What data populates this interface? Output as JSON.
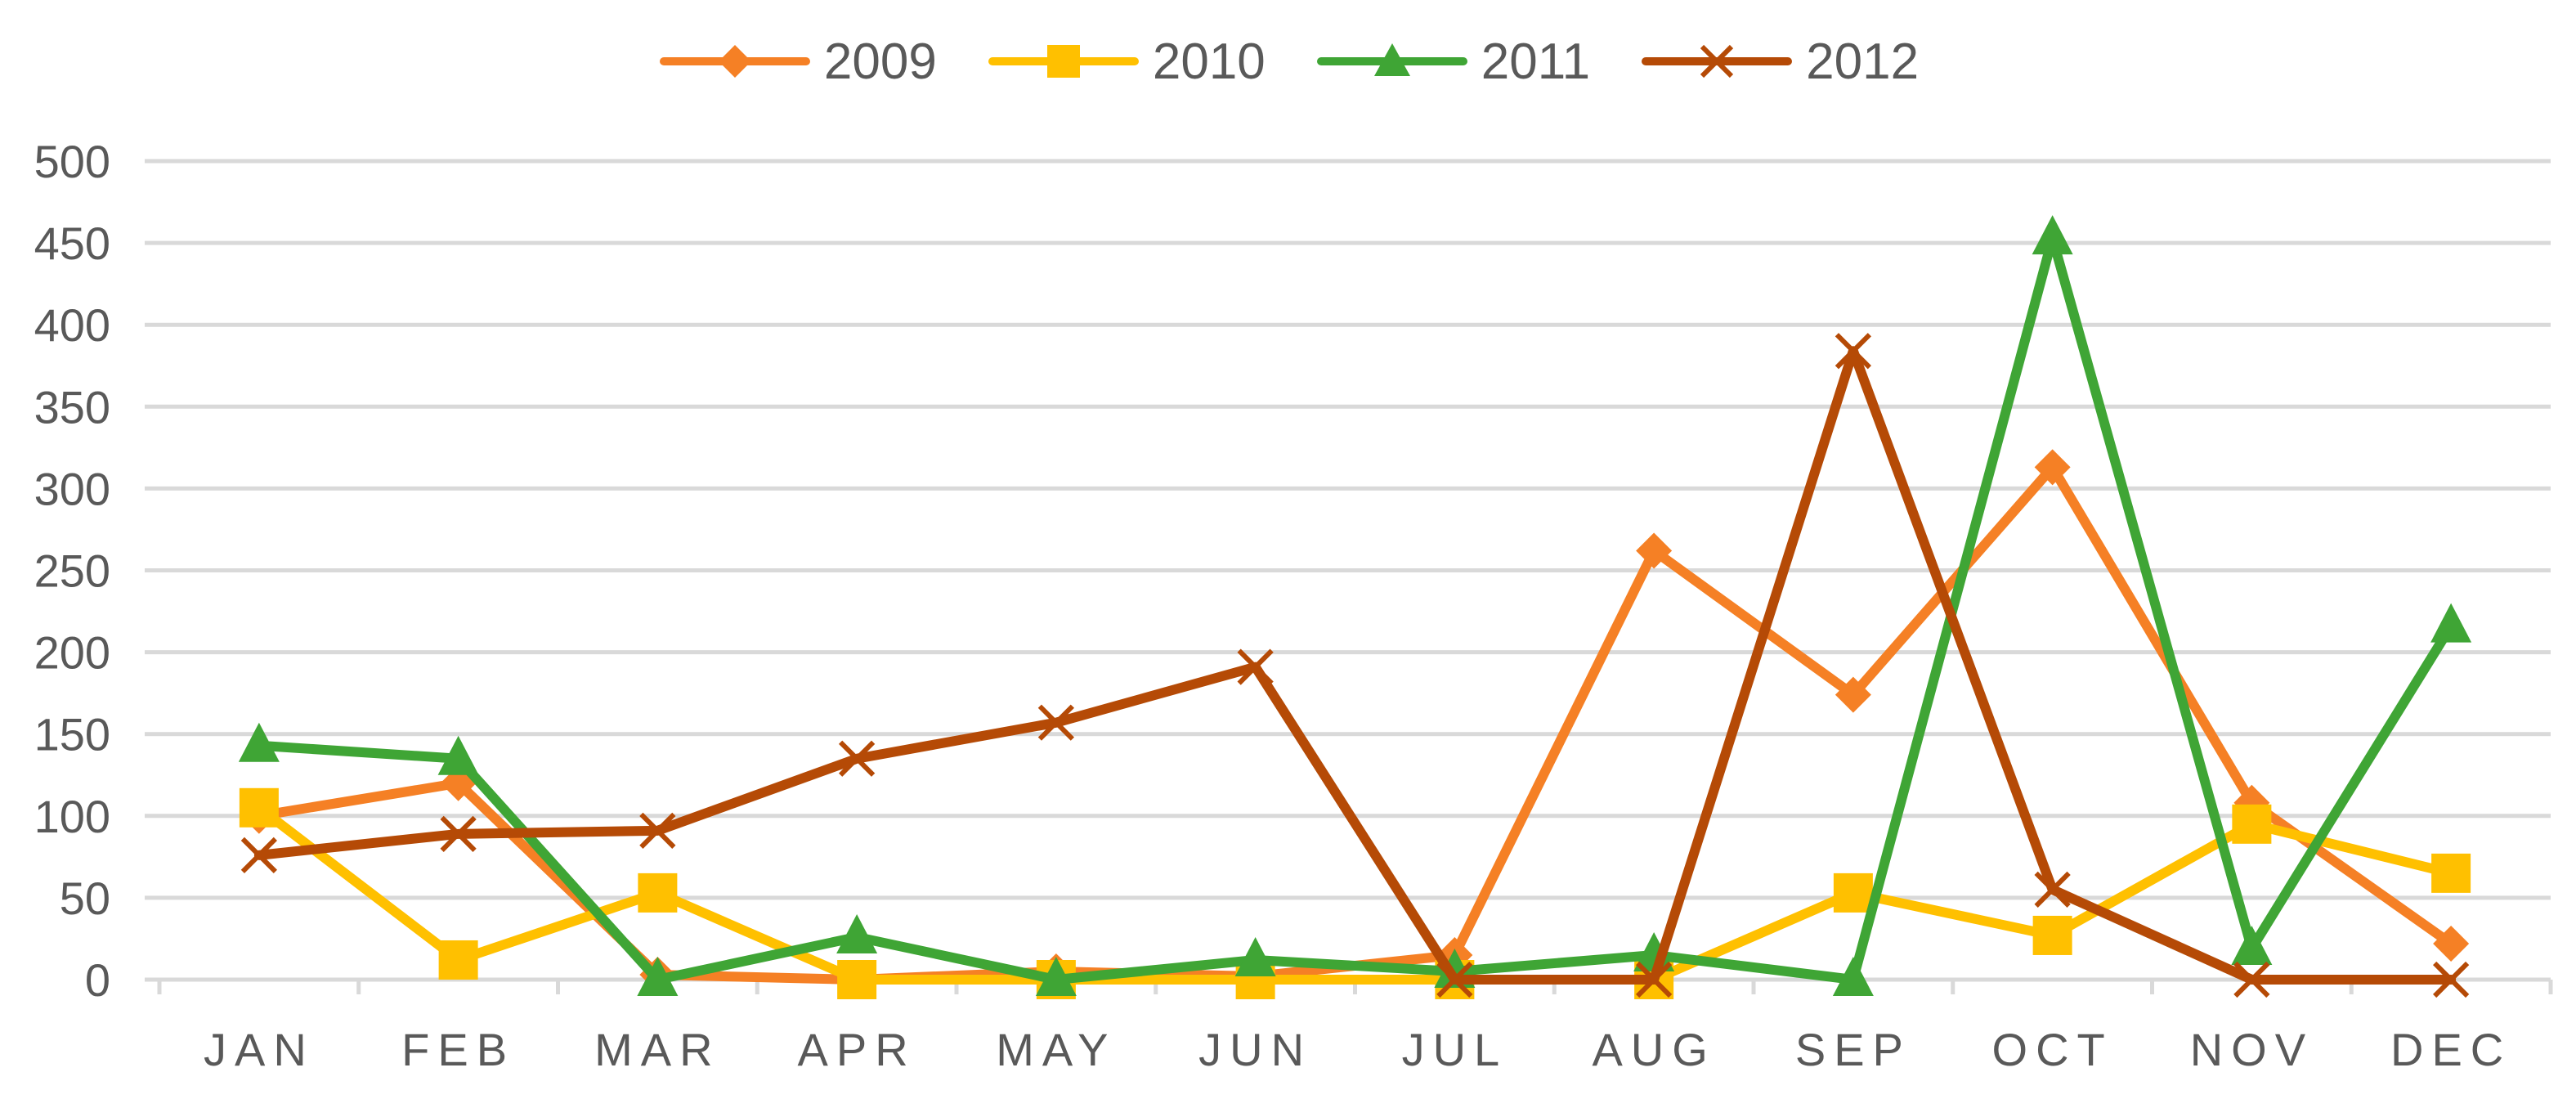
{
  "chart_data": {
    "type": "line",
    "title": "",
    "xlabel": "",
    "ylabel": "",
    "categories": [
      "JAN",
      "FEB",
      "MAR",
      "APR",
      "MAY",
      "JUN",
      "JUL",
      "AUG",
      "SEP",
      "OCT",
      "NOV",
      "DEC"
    ],
    "ylim": [
      0,
      500
    ],
    "yticks": [
      0,
      50,
      100,
      150,
      200,
      250,
      300,
      350,
      400,
      450,
      500
    ],
    "grid": true,
    "legend_position": "top-center",
    "series": [
      {
        "name": "2009",
        "color": "#F58025",
        "marker": "diamond",
        "values": [
          100,
          120,
          3,
          0,
          5,
          2,
          15,
          262,
          174,
          313,
          108,
          22
        ]
      },
      {
        "name": "2010",
        "color": "#FFC000",
        "marker": "square",
        "values": [
          105,
          12,
          53,
          0,
          0,
          0,
          0,
          0,
          53,
          27,
          95,
          65
        ]
      },
      {
        "name": "2011",
        "color": "#3FA535",
        "marker": "triangle",
        "values": [
          143,
          135,
          0,
          26,
          0,
          12,
          5,
          15,
          0,
          453,
          19,
          216
        ]
      },
      {
        "name": "2012",
        "color": "#B54A06",
        "marker": "x",
        "values": [
          76,
          89,
          91,
          135,
          157,
          191,
          0,
          0,
          384,
          55,
          0,
          0
        ]
      }
    ]
  }
}
